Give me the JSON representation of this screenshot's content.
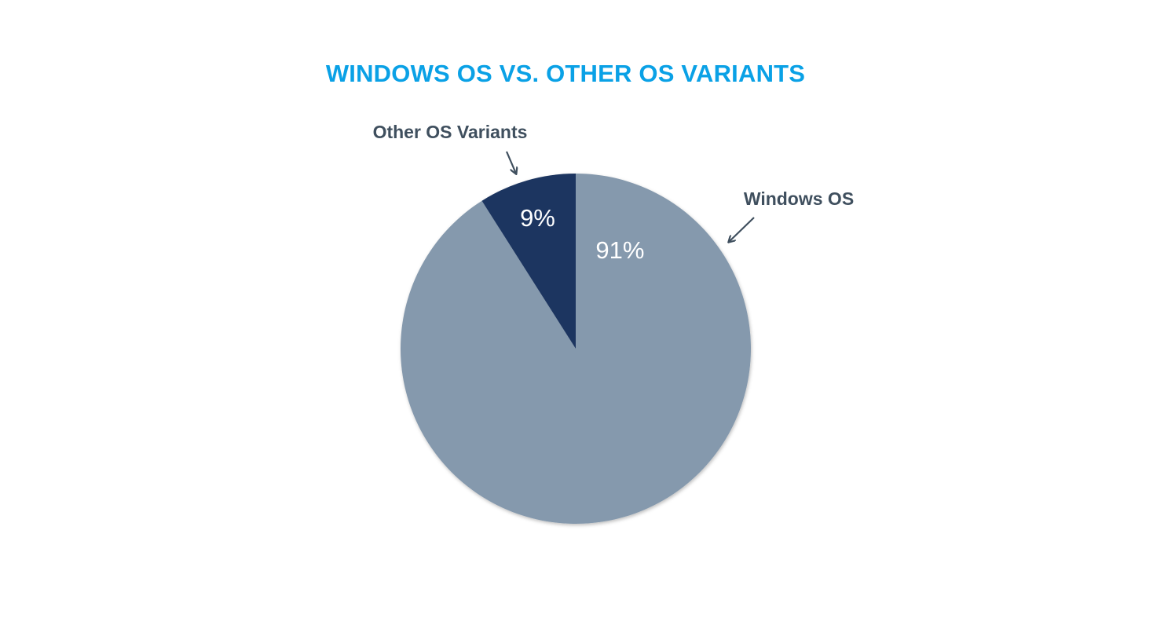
{
  "chart_data": {
    "type": "pie",
    "title": "WINDOWS OS VS. OTHER OS VARIANTS",
    "slices": [
      {
        "label": "Windows OS",
        "value": 91,
        "value_label": "91%",
        "color": "#8599ad"
      },
      {
        "label": "Other OS Variants",
        "value": 9,
        "value_label": "9%",
        "color": "#1f3660"
      }
    ],
    "start_angle_deg": 0,
    "direction": "clockwise",
    "legend": "none",
    "labels_outside_with_arrows": true
  },
  "colors": {
    "title": "#0aa1e6",
    "callout_text": "#3f4f5e",
    "arrow": "#3f4f5e"
  }
}
